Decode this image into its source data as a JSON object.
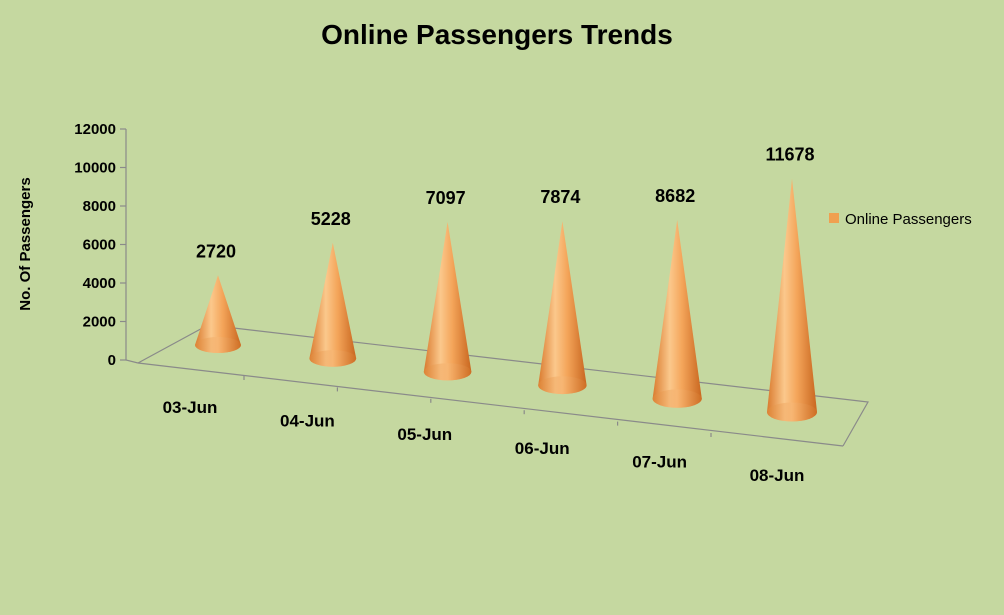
{
  "chart_data": {
    "type": "bar",
    "mark": "3d-cone",
    "title": "Online Passengers Trends",
    "ylabel": "No. Of Passengers",
    "xlabel": "",
    "categories": [
      "03-Jun",
      "04-Jun",
      "05-Jun",
      "06-Jun",
      "07-Jun",
      "08-Jun"
    ],
    "series": [
      {
        "name": "Online Passengers",
        "values": [
          2720,
          5228,
          7097,
          7874,
          8682,
          11678
        ]
      }
    ],
    "ylim": [
      0,
      12000
    ],
    "yticks": [
      "0",
      "2000",
      "4000",
      "6000",
      "8000",
      "10000",
      "12000"
    ],
    "grid": false,
    "legend": "right",
    "colors": {
      "background": "#c5d8a0",
      "series": "#f0a050",
      "axis": "#8a8a8a"
    }
  }
}
